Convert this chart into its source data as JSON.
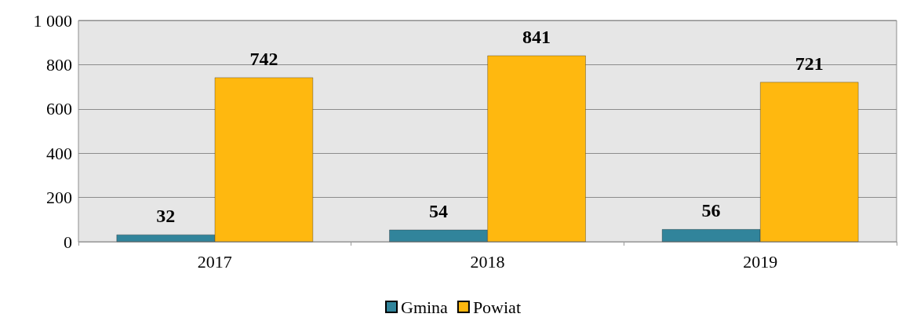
{
  "chart_data": {
    "type": "bar",
    "categories": [
      "2017",
      "2018",
      "2019"
    ],
    "series": [
      {
        "name": "Gmina",
        "color": "#31849b",
        "values": [
          32,
          54,
          56
        ]
      },
      {
        "name": "Powiat",
        "color": "#ffb80f",
        "values": [
          742,
          841,
          721
        ]
      }
    ],
    "ylim": [
      0,
      1000
    ],
    "yticks": [
      0,
      200,
      400,
      600,
      800,
      {
        "value": 1000,
        "label": "1 000"
      }
    ],
    "grid": "y",
    "legend": "bottom",
    "data_labels": true
  }
}
